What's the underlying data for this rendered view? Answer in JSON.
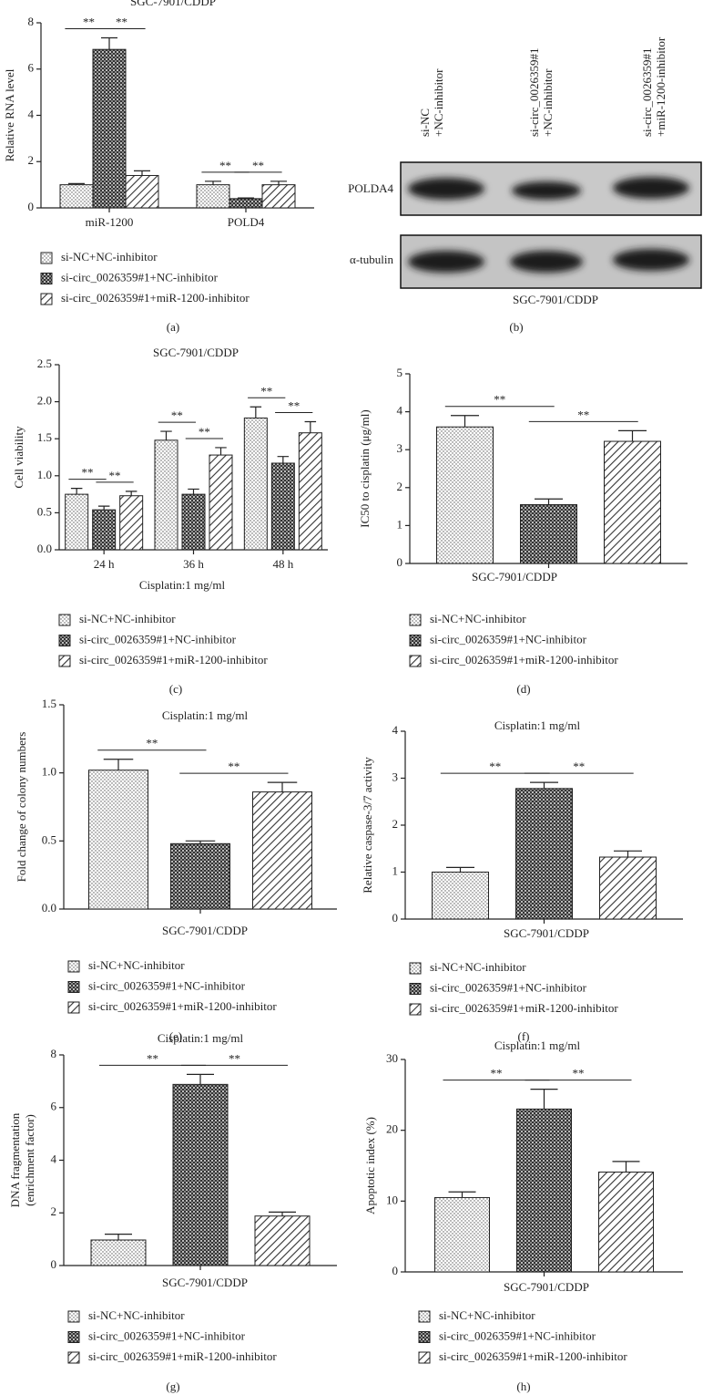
{
  "chart_data": [
    {
      "type": "bar",
      "panel": "(a)",
      "title": "SGC-7901/CDDP",
      "ylabel": "Relative RNA level",
      "categories": [
        "miR-1200",
        "POLD4"
      ],
      "series": [
        {
          "name": "si-NC+NC-inhibitor",
          "pattern": "dots",
          "values": [
            1.0,
            1.0
          ],
          "errors": [
            0.05,
            0.15
          ]
        },
        {
          "name": "si-circ_0026359#1+NC-inhibitor",
          "pattern": "checker",
          "values": [
            6.85,
            0.4
          ],
          "errors": [
            0.5,
            0.03
          ]
        },
        {
          "name": "si-circ_0026359#1+miR-1200-inhibitor",
          "pattern": "hatch",
          "values": [
            1.4,
            1.0
          ],
          "errors": [
            0.2,
            0.15
          ]
        }
      ],
      "ylim": [
        0,
        8
      ],
      "yticks": [
        0,
        2,
        4,
        6,
        8
      ],
      "significance": [
        [
          "**",
          "**"
        ],
        [
          "**",
          "**"
        ]
      ]
    },
    {
      "type": "bar",
      "panel": "(c)",
      "title": "SGC-7901/CDDP",
      "ylabel": "Cell viability",
      "xlabel": "Cisplatin:1 mg/ml",
      "categories": [
        "24 h",
        "36 h",
        "48 h"
      ],
      "series": [
        {
          "name": "si-NC+NC-inhibitor",
          "pattern": "dots",
          "values": [
            0.75,
            1.48,
            1.78
          ],
          "errors": [
            0.08,
            0.12,
            0.15
          ]
        },
        {
          "name": "si-circ_0026359#1+NC-inhibitor",
          "pattern": "checker",
          "values": [
            0.54,
            0.75,
            1.17
          ],
          "errors": [
            0.05,
            0.07,
            0.09
          ]
        },
        {
          "name": "si-circ_0026359#1+miR-1200-inhibitor",
          "pattern": "hatch",
          "values": [
            0.73,
            1.28,
            1.58
          ],
          "errors": [
            0.06,
            0.1,
            0.15
          ]
        }
      ],
      "ylim": [
        0,
        2.5
      ],
      "yticks": [
        {
          "value": 0,
          "label": "0.0"
        },
        0.5,
        {
          "value": 1,
          "label": "1.0"
        },
        1.5,
        {
          "value": 2,
          "label": "2.0"
        },
        2.5
      ],
      "significance": [
        [
          "**",
          "**"
        ],
        [
          "**",
          "**"
        ],
        [
          "**",
          "**"
        ]
      ]
    },
    {
      "type": "bar",
      "panel": "(d)",
      "ylabel": "IC50 to cisplatin (μg/ml)",
      "xlabel": "SGC-7901/CDDP",
      "categories": [
        null
      ],
      "series": [
        {
          "name": "si-NC+NC-inhibitor",
          "pattern": "dots",
          "values": [
            3.6
          ],
          "errors": [
            0.3
          ]
        },
        {
          "name": "si-circ_0026359#1+NC-inhibitor",
          "pattern": "checker",
          "values": [
            1.55
          ],
          "errors": [
            0.15
          ]
        },
        {
          "name": "si-circ_0026359#1+miR-1200-inhibitor",
          "pattern": "hatch",
          "values": [
            3.22
          ],
          "errors": [
            0.28
          ]
        }
      ],
      "ylim": [
        0,
        5
      ],
      "yticks": [
        0,
        1,
        2,
        3,
        4,
        5
      ],
      "significance": [
        [
          "**",
          "**"
        ]
      ]
    },
    {
      "type": "bar",
      "panel": "(e)",
      "title": "Cisplatin:1 mg/ml",
      "ylabel": "Fold change of colony numbers",
      "xlabel": "SGC-7901/CDDP",
      "categories": [
        null
      ],
      "series": [
        {
          "name": "si-NC+NC-inhibitor",
          "pattern": "dots",
          "values": [
            1.02
          ],
          "errors": [
            0.08
          ]
        },
        {
          "name": "si-circ_0026359#1+NC-inhibitor",
          "pattern": "checker",
          "values": [
            0.48
          ],
          "errors": [
            0.02
          ]
        },
        {
          "name": "si-circ_0026359#1+miR-1200-inhibitor",
          "pattern": "hatch",
          "values": [
            0.86
          ],
          "errors": [
            0.07
          ]
        }
      ],
      "ylim": [
        0,
        1.5
      ],
      "yticks": [
        {
          "value": 0,
          "label": "0.0"
        },
        0.5,
        {
          "value": 1,
          "label": "1.0"
        },
        1.5
      ],
      "significance": [
        [
          "**",
          "**"
        ]
      ]
    },
    {
      "type": "bar",
      "panel": "(f)",
      "title": "Cisplatin:1 mg/ml",
      "ylabel": "Relative caspase-3/7 activity",
      "xlabel": "SGC-7901/CDDP",
      "categories": [
        null
      ],
      "series": [
        {
          "name": "si-NC+NC-inhibitor",
          "pattern": "dots",
          "values": [
            1.0
          ],
          "errors": [
            0.1
          ]
        },
        {
          "name": "si-circ_0026359#1+NC-inhibitor",
          "pattern": "checker",
          "values": [
            2.78
          ],
          "errors": [
            0.13
          ]
        },
        {
          "name": "si-circ_0026359#1+miR-1200-inhibitor",
          "pattern": "hatch",
          "values": [
            1.32
          ],
          "errors": [
            0.13
          ]
        }
      ],
      "ylim": [
        0,
        4
      ],
      "yticks": [
        0,
        1,
        2,
        3,
        4
      ],
      "significance": [
        [
          "**",
          "**"
        ]
      ]
    },
    {
      "type": "bar",
      "panel": "(g)",
      "title": "Cisplatin:1 mg/ml",
      "ylabel": [
        "DNA fragmentation",
        "(enrichment factor)"
      ],
      "xlabel": "SGC-7901/CDDP",
      "categories": [
        null
      ],
      "series": [
        {
          "name": "si-NC+NC-inhibitor",
          "pattern": "dots",
          "values": [
            0.97
          ],
          "errors": [
            0.22
          ]
        },
        {
          "name": "si-circ_0026359#1+NC-inhibitor",
          "pattern": "checker",
          "values": [
            6.88
          ],
          "errors": [
            0.38
          ]
        },
        {
          "name": "si-circ_0026359#1+miR-1200-inhibitor",
          "pattern": "hatch",
          "values": [
            1.88
          ],
          "errors": [
            0.15
          ]
        }
      ],
      "ylim": [
        0,
        8
      ],
      "yticks": [
        0,
        2,
        4,
        6,
        8
      ],
      "significance": [
        [
          "**",
          "**"
        ]
      ]
    },
    {
      "type": "bar",
      "panel": "(h)",
      "title": "Cisplatin:1 mg/ml",
      "ylabel": "Apoptotic index (%)",
      "xlabel": "SGC-7901/CDDP",
      "categories": [
        null
      ],
      "series": [
        {
          "name": "si-NC+NC-inhibitor",
          "pattern": "dots",
          "values": [
            10.5
          ],
          "errors": [
            0.8
          ]
        },
        {
          "name": "si-circ_0026359#1+NC-inhibitor",
          "pattern": "checker",
          "values": [
            23
          ],
          "errors": [
            2.8
          ]
        },
        {
          "name": "si-circ_0026359#1+miR-1200-inhibitor",
          "pattern": "hatch",
          "values": [
            14.1
          ],
          "errors": [
            1.5
          ]
        }
      ],
      "ylim": [
        0,
        30
      ],
      "yticks": [
        0,
        10,
        20,
        30
      ],
      "significance": [
        [
          "**",
          "**"
        ]
      ]
    }
  ],
  "blot": {
    "panel": "(b)",
    "caption": "SGC-7901/CDDP",
    "lanes": [
      [
        "si-NC",
        "+NC-inhibitor"
      ],
      [
        "si-circ_0026359#1",
        "+NC-inhibitor"
      ],
      [
        "si-circ_0026359#1",
        "+miR-1200-inhibitor"
      ]
    ],
    "rows": [
      "POLDA4",
      "α-tubulin"
    ]
  }
}
